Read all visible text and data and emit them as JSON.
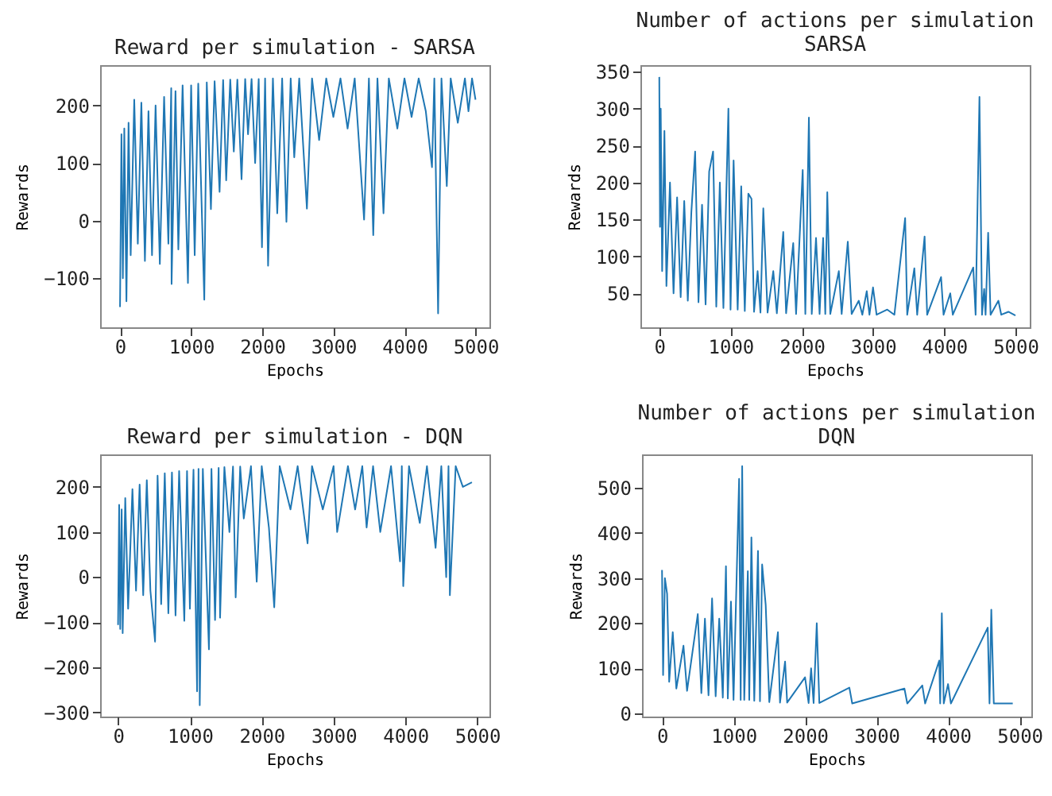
{
  "chart_data": [
    {
      "type": "line",
      "title": "Reward per simulation - SARSA",
      "xlabel": "Epochs",
      "ylabel": "Rewards",
      "color": "#1f77b4",
      "xlim": [
        -280,
        5195
      ],
      "xticks": [
        0,
        1000,
        2000,
        3000,
        4000,
        5000
      ],
      "ylim": [
        -185,
        270
      ],
      "yticks": [
        -100,
        0,
        100,
        200
      ],
      "x": [
        0,
        20,
        40,
        60,
        90,
        120,
        150,
        200,
        250,
        300,
        350,
        400,
        450,
        500,
        560,
        620,
        680,
        720,
        725,
        780,
        820,
        880,
        955,
        1000,
        1050,
        1100,
        1185,
        1220,
        1278,
        1330,
        1400,
        1450,
        1493,
        1550,
        1600,
        1650,
        1709,
        1760,
        1800,
        1850,
        1900,
        1950,
        1996,
        2040,
        2082,
        2150,
        2211,
        2280,
        2340,
        2400,
        2450,
        2520,
        2628,
        2700,
        2800,
        2900,
        3000,
        3100,
        3200,
        3300,
        3432,
        3500,
        3561,
        3620,
        3705,
        3780,
        3900,
        4000,
        4100,
        4200,
        4300,
        4387,
        4420,
        4473,
        4520,
        4595,
        4650,
        4750,
        4850,
        4900,
        4950,
        4999
      ],
      "values": [
        -150,
        150,
        -100,
        160,
        -140,
        170,
        -60,
        210,
        -40,
        205,
        -70,
        190,
        -60,
        200,
        -75,
        215,
        -40,
        230,
        -110,
        225,
        -50,
        235,
        -108,
        235,
        -60,
        238,
        -137,
        240,
        20,
        242,
        50,
        244,
        70,
        245,
        120,
        245,
        72,
        246,
        150,
        246,
        100,
        246,
        -46,
        247,
        -78,
        247,
        13,
        247,
        -2,
        247,
        110,
        247,
        21,
        247,
        140,
        247,
        180,
        247,
        160,
        247,
        2,
        247,
        -25,
        247,
        13,
        247,
        160,
        247,
        180,
        247,
        190,
        93,
        247,
        -161,
        247,
        60,
        247,
        170,
        247,
        190,
        247,
        210
      ]
    },
    {
      "type": "line",
      "title": "Number of actions per simulation",
      "subtitle": "SARSA",
      "xlabel": "Epochs",
      "ylabel": "Rewards",
      "color": "#1f77b4",
      "xlim": [
        -265,
        5200
      ],
      "xticks": [
        0,
        1000,
        2000,
        3000,
        4000,
        5000
      ],
      "ylim": [
        4,
        359
      ],
      "yticks": [
        50,
        100,
        150,
        200,
        250,
        300,
        350
      ],
      "x": [
        0,
        10,
        20,
        40,
        72,
        100,
        150,
        200,
        250,
        300,
        350,
        400,
        450,
        503,
        550,
        600,
        650,
        700,
        755,
        800,
        850,
        900,
        970,
        1000,
        1043,
        1100,
        1150,
        1200,
        1250,
        1294,
        1330,
        1380,
        1420,
        1460,
        1520,
        1600,
        1650,
        1740,
        1780,
        1880,
        1920,
        2013,
        2050,
        2100,
        2140,
        2200,
        2250,
        2300,
        2330,
        2358,
        2400,
        2520,
        2560,
        2646,
        2700,
        2800,
        2850,
        2912,
        2950,
        3000,
        3050,
        3200,
        3300,
        3451,
        3480,
        3580,
        3620,
        3724,
        3760,
        3955,
        3990,
        4084,
        4120,
        4407,
        4440,
        4494,
        4530,
        4560,
        4580,
        4616,
        4650,
        4760,
        4800,
        4900,
        4999
      ],
      "values": [
        343,
        140,
        300,
        80,
        270,
        60,
        200,
        50,
        180,
        45,
        175,
        40,
        160,
        242,
        38,
        170,
        35,
        215,
        242,
        32,
        200,
        30,
        300,
        28,
        230,
        28,
        195,
        26,
        185,
        178,
        25,
        80,
        24,
        165,
        24,
        80,
        23,
        133,
        23,
        118,
        22,
        217,
        22,
        288,
        22,
        125,
        22,
        125,
        22,
        187,
        22,
        80,
        22,
        120,
        22,
        40,
        21,
        53,
        21,
        58,
        21,
        28,
        21,
        152,
        21,
        84,
        21,
        127,
        21,
        72,
        21,
        50,
        21,
        85,
        21,
        316,
        21,
        56,
        21,
        132,
        21,
        40,
        21,
        25,
        20
      ]
    },
    {
      "type": "line",
      "title": "Reward per simulation - DQN",
      "xlabel": "Epochs",
      "ylabel": "Rewards",
      "color": "#1f77b4",
      "xlim": [
        -250,
        5170
      ],
      "xticks": [
        0,
        1000,
        2000,
        3000,
        4000,
        5000
      ],
      "ylim": [
        -309,
        272
      ],
      "yticks": [
        -300,
        -200,
        -100,
        0,
        100,
        200
      ],
      "x": [
        0,
        15,
        30,
        50,
        64,
        100,
        140,
        200,
        250,
        300,
        350,
        400,
        450,
        515,
        550,
        600,
        650,
        700,
        750,
        800,
        850,
        922,
        960,
        1000,
        1050,
        1100,
        1120,
        1137,
        1180,
        1265,
        1300,
        1350,
        1400,
        1420,
        1480,
        1550,
        1600,
        1637,
        1700,
        1750,
        1850,
        1930,
        2000,
        2100,
        2174,
        2250,
        2400,
        2500,
        2638,
        2700,
        2850,
        3000,
        3050,
        3200,
        3300,
        3400,
        3460,
        3550,
        3650,
        3800,
        3925,
        3950,
        3970,
        4050,
        4200,
        4300,
        4420,
        4500,
        4568,
        4600,
        4619,
        4700,
        4800,
        4926
      ],
      "values": [
        -106,
        160,
        -115,
        150,
        -124,
        175,
        -70,
        195,
        -30,
        205,
        -40,
        215,
        -30,
        -143,
        225,
        -60,
        230,
        -80,
        232,
        -85,
        235,
        -97,
        235,
        -70,
        238,
        -253,
        240,
        -284,
        240,
        -160,
        240,
        -95,
        242,
        -90,
        244,
        100,
        245,
        -45,
        245,
        130,
        246,
        -10,
        246,
        110,
        -67,
        246,
        150,
        246,
        75,
        246,
        150,
        246,
        100,
        246,
        150,
        246,
        110,
        246,
        100,
        246,
        35,
        246,
        -20,
        246,
        120,
        246,
        65,
        246,
        0,
        246,
        -40,
        246,
        200,
        210
      ]
    },
    {
      "type": "line",
      "title": "Number of actions per simulation",
      "subtitle": "DQN",
      "xlabel": "Epochs",
      "ylabel": "Rewards",
      "color": "#1f77b4",
      "xlim": [
        -280,
        5165
      ],
      "xticks": [
        0,
        1000,
        2000,
        3000,
        4000,
        5000
      ],
      "ylim": [
        -7,
        574
      ],
      "yticks": [
        0,
        100,
        200,
        300,
        400,
        500
      ],
      "x": [
        0,
        15,
        40,
        71,
        100,
        150,
        200,
        300,
        350,
        500,
        550,
        600,
        650,
        700,
        750,
        800,
        850,
        894,
        920,
        964,
        1000,
        1078,
        1100,
        1121,
        1150,
        1200,
        1220,
        1250,
        1290,
        1342,
        1370,
        1400,
        1450,
        1500,
        1621,
        1650,
        1721,
        1750,
        2000,
        2050,
        2085,
        2120,
        2164,
        2200,
        2620,
        2660,
        3390,
        3430,
        3640,
        3680,
        3877,
        3890,
        3913,
        3940,
        4000,
        4040,
        4555,
        4580,
        4605,
        4640,
        4905
      ],
      "values": [
        318,
        85,
        300,
        265,
        70,
        180,
        55,
        150,
        50,
        220,
        45,
        210,
        40,
        255,
        38,
        210,
        35,
        326,
        33,
        248,
        30,
        520,
        30,
        548,
        30,
        315,
        30,
        390,
        28,
        360,
        27,
        330,
        240,
        25,
        180,
        24,
        115,
        24,
        80,
        23,
        100,
        23,
        200,
        23,
        57,
        22,
        55,
        22,
        62,
        22,
        117,
        22,
        222,
        22,
        65,
        22,
        190,
        22,
        230,
        22,
        22
      ]
    }
  ]
}
